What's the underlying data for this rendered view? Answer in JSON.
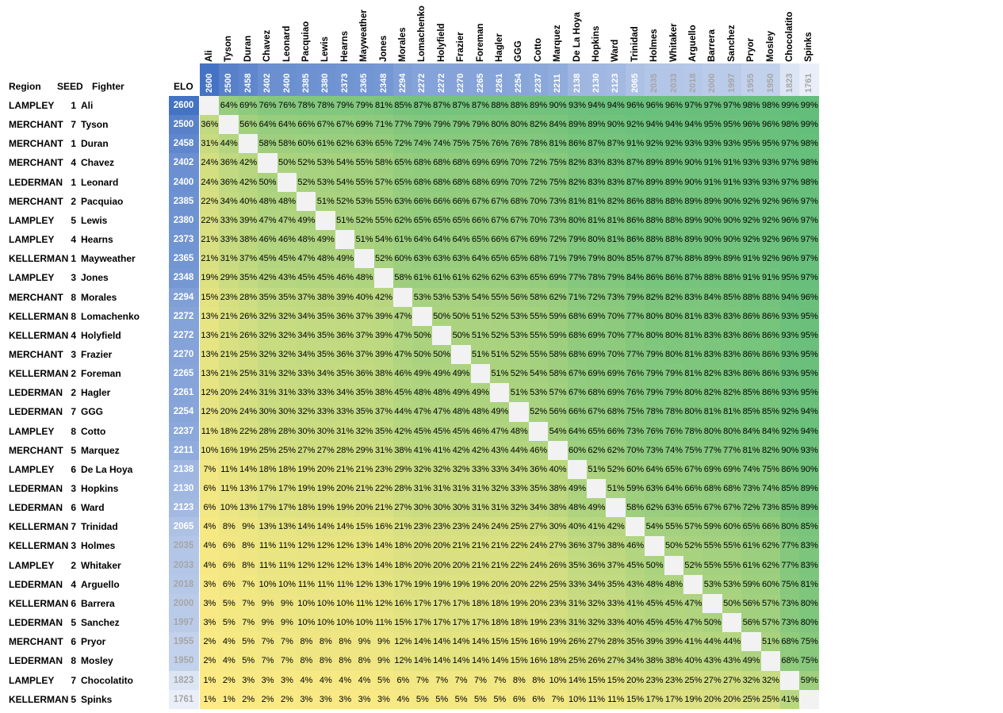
{
  "headers": {
    "region": "Region",
    "seed": "SEED",
    "fighter": "Fighter",
    "elo": "ELO"
  },
  "colors": {
    "high": "#63be7b",
    "mid": "#ffeb84",
    "low": "#ffeb84",
    "elo_high": "#4472c4",
    "elo_low": "#ffffff"
  },
  "chart_data": {
    "type": "heatmap",
    "title": "",
    "value_format": "percent",
    "fighters": [
      {
        "region": "LAMPLEY",
        "seed": "1",
        "name": "Ali",
        "elo": "2600"
      },
      {
        "region": "MERCHANT",
        "seed": "7",
        "name": "Tyson",
        "elo": "2500"
      },
      {
        "region": "MERCHANT",
        "seed": "1",
        "name": "Duran",
        "elo": "2458"
      },
      {
        "region": "MERCHANT",
        "seed": "4",
        "name": "Chavez",
        "elo": "2402"
      },
      {
        "region": "LEDERMAN",
        "seed": "1",
        "name": "Leonard",
        "elo": "2400"
      },
      {
        "region": "MERCHANT",
        "seed": "2",
        "name": "Pacquiao",
        "elo": "2385"
      },
      {
        "region": "LAMPLEY",
        "seed": "5",
        "name": "Lewis",
        "elo": "2380"
      },
      {
        "region": "LAMPLEY",
        "seed": "4",
        "name": "Hearns",
        "elo": "2373"
      },
      {
        "region": "KELLERMAN",
        "seed": "1",
        "name": "Mayweather",
        "elo": "2365"
      },
      {
        "region": "LAMPLEY",
        "seed": "3",
        "name": "Jones",
        "elo": "2348"
      },
      {
        "region": "MERCHANT",
        "seed": "8",
        "name": "Morales",
        "elo": "2294"
      },
      {
        "region": "KELLERMAN",
        "seed": "8",
        "name": "Lomachenko",
        "elo": "2272"
      },
      {
        "region": "KELLERMAN",
        "seed": "4",
        "name": "Holyfield",
        "elo": "2272"
      },
      {
        "region": "MERCHANT",
        "seed": "3",
        "name": "Frazier",
        "elo": "2270"
      },
      {
        "region": "KELLERMAN",
        "seed": "2",
        "name": "Foreman",
        "elo": "2265"
      },
      {
        "region": "LEDERMAN",
        "seed": "2",
        "name": "Hagler",
        "elo": "2261"
      },
      {
        "region": "LEDERMAN",
        "seed": "7",
        "name": "GGG",
        "elo": "2254"
      },
      {
        "region": "LAMPLEY",
        "seed": "8",
        "name": "Cotto",
        "elo": "2237"
      },
      {
        "region": "MERCHANT",
        "seed": "5",
        "name": "Marquez",
        "elo": "2211"
      },
      {
        "region": "LAMPLEY",
        "seed": "6",
        "name": "De La Hoya",
        "elo": "2138"
      },
      {
        "region": "LEDERMAN",
        "seed": "3",
        "name": "Hopkins",
        "elo": "2130"
      },
      {
        "region": "LEDERMAN",
        "seed": "6",
        "name": "Ward",
        "elo": "2123"
      },
      {
        "region": "KELLERMAN",
        "seed": "7",
        "name": "Trinidad",
        "elo": "2065"
      },
      {
        "region": "KELLERMAN",
        "seed": "3",
        "name": "Holmes",
        "elo": "2035"
      },
      {
        "region": "LAMPLEY",
        "seed": "2",
        "name": "Whitaker",
        "elo": "2033"
      },
      {
        "region": "LEDERMAN",
        "seed": "4",
        "name": "Arguello",
        "elo": "2018"
      },
      {
        "region": "KELLERMAN",
        "seed": "6",
        "name": "Barrera",
        "elo": "2000"
      },
      {
        "region": "LEDERMAN",
        "seed": "5",
        "name": "Sanchez",
        "elo": "1997"
      },
      {
        "region": "MERCHANT",
        "seed": "6",
        "name": "Pryor",
        "elo": "1955"
      },
      {
        "region": "LEDERMAN",
        "seed": "8",
        "name": "Mosley",
        "elo": "1950"
      },
      {
        "region": "LAMPLEY",
        "seed": "7",
        "name": "Chocolatito",
        "elo": "1823"
      },
      {
        "region": "KELLERMAN",
        "seed": "5",
        "name": "Spinks",
        "elo": "1761"
      }
    ],
    "matrix": [
      [
        null,
        64,
        69,
        76,
        76,
        78,
        78,
        79,
        79,
        81,
        85,
        87,
        87,
        87,
        87,
        88,
        88,
        89,
        90,
        93,
        94,
        94,
        96,
        96,
        96,
        97,
        97,
        97,
        98,
        98,
        99,
        99
      ],
      [
        36,
        null,
        56,
        64,
        64,
        66,
        67,
        67,
        69,
        71,
        77,
        79,
        79,
        79,
        79,
        80,
        80,
        82,
        84,
        89,
        89,
        90,
        92,
        94,
        94,
        94,
        95,
        95,
        96,
        96,
        98,
        99
      ],
      [
        31,
        44,
        null,
        58,
        58,
        60,
        61,
        62,
        63,
        65,
        72,
        74,
        74,
        75,
        75,
        76,
        76,
        78,
        81,
        86,
        87,
        87,
        91,
        92,
        92,
        93,
        93,
        93,
        95,
        95,
        97,
        98
      ],
      [
        24,
        36,
        42,
        null,
        50,
        52,
        53,
        54,
        55,
        58,
        65,
        68,
        68,
        68,
        69,
        69,
        70,
        72,
        75,
        82,
        83,
        83,
        87,
        89,
        89,
        90,
        91,
        91,
        93,
        93,
        97,
        98
      ],
      [
        24,
        36,
        42,
        50,
        null,
        52,
        53,
        54,
        55,
        57,
        65,
        68,
        68,
        68,
        68,
        69,
        70,
        72,
        75,
        82,
        83,
        83,
        87,
        89,
        89,
        90,
        91,
        91,
        93,
        93,
        97,
        98
      ],
      [
        22,
        34,
        40,
        48,
        48,
        null,
        51,
        52,
        53,
        55,
        63,
        66,
        66,
        66,
        67,
        67,
        68,
        70,
        73,
        81,
        81,
        82,
        86,
        88,
        88,
        89,
        89,
        90,
        92,
        92,
        96,
        97
      ],
      [
        22,
        33,
        39,
        47,
        47,
        49,
        null,
        51,
        52,
        55,
        62,
        65,
        65,
        65,
        66,
        67,
        67,
        70,
        73,
        80,
        81,
        81,
        86,
        88,
        88,
        89,
        90,
        90,
        92,
        92,
        96,
        97
      ],
      [
        21,
        33,
        38,
        46,
        46,
        48,
        49,
        null,
        51,
        54,
        61,
        64,
        64,
        64,
        65,
        66,
        67,
        69,
        72,
        79,
        80,
        81,
        86,
        88,
        88,
        89,
        90,
        90,
        92,
        92,
        96,
        97
      ],
      [
        21,
        31,
        37,
        45,
        45,
        47,
        48,
        49,
        null,
        52,
        60,
        63,
        63,
        63,
        64,
        65,
        65,
        68,
        71,
        79,
        79,
        80,
        85,
        87,
        87,
        88,
        89,
        89,
        91,
        92,
        96,
        97
      ],
      [
        19,
        29,
        35,
        42,
        43,
        45,
        45,
        46,
        48,
        null,
        58,
        61,
        61,
        61,
        62,
        62,
        63,
        65,
        69,
        77,
        78,
        79,
        84,
        86,
        86,
        87,
        88,
        88,
        91,
        91,
        95,
        97
      ],
      [
        15,
        23,
        28,
        35,
        35,
        37,
        38,
        39,
        40,
        42,
        null,
        53,
        53,
        53,
        54,
        55,
        56,
        58,
        62,
        71,
        72,
        73,
        79,
        82,
        82,
        83,
        84,
        85,
        88,
        88,
        94,
        96
      ],
      [
        13,
        21,
        26,
        32,
        32,
        34,
        35,
        36,
        37,
        39,
        47,
        null,
        50,
        50,
        51,
        52,
        53,
        55,
        59,
        68,
        69,
        70,
        77,
        80,
        80,
        81,
        83,
        83,
        86,
        86,
        93,
        95
      ],
      [
        13,
        21,
        26,
        32,
        32,
        34,
        35,
        36,
        37,
        39,
        47,
        50,
        null,
        50,
        51,
        52,
        53,
        55,
        59,
        68,
        69,
        70,
        77,
        80,
        80,
        81,
        83,
        83,
        86,
        86,
        93,
        95
      ],
      [
        13,
        21,
        25,
        32,
        32,
        34,
        35,
        36,
        37,
        39,
        47,
        50,
        50,
        null,
        51,
        51,
        52,
        55,
        58,
        68,
        69,
        70,
        77,
        79,
        80,
        81,
        83,
        83,
        86,
        86,
        93,
        95
      ],
      [
        13,
        21,
        25,
        31,
        32,
        33,
        34,
        35,
        36,
        38,
        46,
        49,
        49,
        49,
        null,
        51,
        52,
        54,
        58,
        67,
        69,
        69,
        76,
        79,
        79,
        81,
        82,
        83,
        86,
        86,
        93,
        95
      ],
      [
        12,
        20,
        24,
        31,
        31,
        33,
        33,
        34,
        35,
        38,
        45,
        48,
        48,
        49,
        49,
        null,
        51,
        53,
        57,
        67,
        68,
        69,
        76,
        79,
        79,
        80,
        82,
        82,
        85,
        86,
        93,
        95
      ],
      [
        12,
        20,
        24,
        30,
        30,
        32,
        33,
        33,
        35,
        37,
        44,
        47,
        47,
        48,
        48,
        49,
        null,
        52,
        56,
        66,
        67,
        68,
        75,
        78,
        78,
        80,
        81,
        81,
        85,
        85,
        92,
        94
      ],
      [
        11,
        18,
        22,
        28,
        28,
        30,
        30,
        31,
        32,
        35,
        42,
        45,
        45,
        45,
        46,
        47,
        48,
        null,
        54,
        64,
        65,
        66,
        73,
        76,
        76,
        78,
        80,
        80,
        84,
        84,
        92,
        94
      ],
      [
        10,
        16,
        19,
        25,
        25,
        27,
        27,
        28,
        29,
        31,
        38,
        41,
        41,
        42,
        42,
        43,
        44,
        46,
        null,
        60,
        62,
        62,
        70,
        73,
        74,
        75,
        77,
        77,
        81,
        82,
        90,
        93
      ],
      [
        7,
        11,
        14,
        18,
        18,
        19,
        20,
        21,
        21,
        23,
        29,
        32,
        32,
        32,
        33,
        33,
        34,
        36,
        40,
        null,
        51,
        52,
        60,
        64,
        65,
        67,
        69,
        69,
        74,
        75,
        86,
        90
      ],
      [
        6,
        11,
        13,
        17,
        17,
        19,
        19,
        20,
        21,
        22,
        28,
        31,
        31,
        31,
        31,
        32,
        33,
        35,
        38,
        49,
        null,
        51,
        59,
        63,
        64,
        66,
        68,
        68,
        73,
        74,
        85,
        89
      ],
      [
        6,
        10,
        13,
        17,
        17,
        18,
        19,
        19,
        20,
        21,
        27,
        30,
        30,
        30,
        31,
        31,
        32,
        34,
        38,
        48,
        49,
        null,
        58,
        62,
        63,
        65,
        67,
        67,
        72,
        73,
        85,
        89
      ],
      [
        4,
        8,
        9,
        13,
        13,
        14,
        14,
        14,
        15,
        16,
        21,
        23,
        23,
        23,
        24,
        24,
        25,
        27,
        30,
        40,
        41,
        42,
        null,
        54,
        55,
        57,
        59,
        60,
        65,
        66,
        80,
        85
      ],
      [
        4,
        6,
        8,
        11,
        11,
        12,
        12,
        12,
        13,
        14,
        18,
        20,
        20,
        21,
        21,
        21,
        22,
        24,
        27,
        36,
        37,
        38,
        46,
        null,
        50,
        52,
        55,
        55,
        61,
        62,
        77,
        83
      ],
      [
        4,
        6,
        8,
        11,
        11,
        12,
        12,
        12,
        13,
        14,
        18,
        20,
        20,
        20,
        21,
        21,
        22,
        24,
        26,
        35,
        36,
        37,
        45,
        50,
        null,
        52,
        55,
        55,
        61,
        62,
        77,
        83
      ],
      [
        3,
        6,
        7,
        10,
        10,
        11,
        11,
        11,
        12,
        13,
        17,
        19,
        19,
        19,
        19,
        20,
        20,
        22,
        25,
        33,
        34,
        35,
        43,
        48,
        48,
        null,
        53,
        53,
        59,
        60,
        75,
        81
      ],
      [
        3,
        5,
        7,
        9,
        9,
        10,
        10,
        10,
        11,
        12,
        16,
        17,
        17,
        17,
        18,
        18,
        19,
        20,
        23,
        31,
        32,
        33,
        41,
        45,
        45,
        47,
        null,
        50,
        56,
        57,
        73,
        80
      ],
      [
        3,
        5,
        7,
        9,
        9,
        10,
        10,
        10,
        10,
        11,
        15,
        17,
        17,
        17,
        17,
        18,
        18,
        19,
        23,
        31,
        32,
        33,
        40,
        45,
        45,
        47,
        50,
        null,
        56,
        57,
        73,
        80
      ],
      [
        2,
        4,
        5,
        7,
        7,
        8,
        8,
        8,
        9,
        9,
        12,
        14,
        14,
        14,
        14,
        15,
        15,
        16,
        19,
        26,
        27,
        28,
        35,
        39,
        39,
        41,
        44,
        44,
        null,
        51,
        68,
        75
      ],
      [
        2,
        4,
        5,
        7,
        7,
        8,
        8,
        8,
        8,
        9,
        12,
        14,
        14,
        14,
        14,
        14,
        15,
        16,
        18,
        25,
        26,
        27,
        34,
        38,
        38,
        40,
        43,
        43,
        49,
        null,
        68,
        75
      ],
      [
        1,
        2,
        3,
        3,
        3,
        4,
        4,
        4,
        4,
        5,
        6,
        7,
        7,
        7,
        7,
        7,
        8,
        8,
        10,
        14,
        15,
        15,
        20,
        23,
        23,
        25,
        27,
        27,
        32,
        32,
        null,
        59
      ],
      [
        1,
        1,
        2,
        2,
        2,
        3,
        3,
        3,
        3,
        3,
        4,
        5,
        5,
        5,
        5,
        5,
        6,
        6,
        7,
        10,
        11,
        11,
        15,
        17,
        17,
        19,
        20,
        20,
        25,
        25,
        41,
        null
      ]
    ]
  }
}
